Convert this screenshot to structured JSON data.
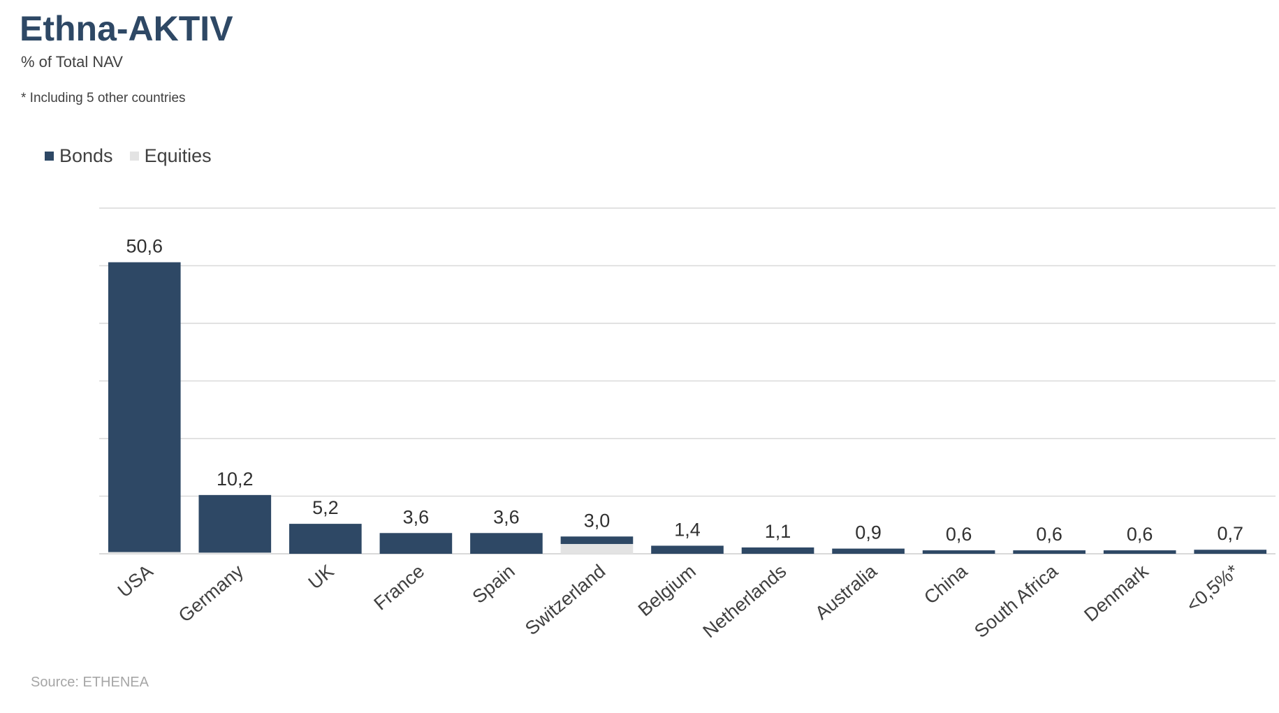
{
  "title": "Ethna-AKTIV",
  "subtitle": "% of Total NAV",
  "note": "* Including 5 other countries",
  "source": "Source: ETHENEA",
  "colors": {
    "bonds": "#2e4865",
    "equities": "#e3e3e3",
    "grid": "#d9d9d9",
    "title": "#2e4865"
  },
  "chart_data": {
    "type": "bar",
    "stacked": true,
    "categories": [
      "USA",
      "Germany",
      "UK",
      "France",
      "Spain",
      "Switzerland",
      "Belgium",
      "Netherlands",
      "Australia",
      "China",
      "South Africa",
      "Denmark",
      "<0,5%*"
    ],
    "series": [
      {
        "name": "Bonds",
        "values": [
          50.3,
          10.0,
          5.2,
          3.6,
          3.6,
          1.3,
          1.4,
          1.1,
          0.9,
          0.6,
          0.6,
          0.6,
          0.7
        ]
      },
      {
        "name": "Equities",
        "values": [
          0.3,
          0.2,
          0.0,
          0.0,
          0.0,
          1.7,
          0.0,
          0.0,
          0.0,
          0.0,
          0.0,
          0.0,
          0.0
        ]
      }
    ],
    "totals": [
      "50,6",
      "10,2",
      "5,2",
      "3,6",
      "3,6",
      "3,0",
      "1,4",
      "1,1",
      "0,9",
      "0,6",
      "0,6",
      "0,6",
      "0,7"
    ],
    "ylim": [
      0,
      60
    ],
    "grid": true,
    "legend_position": "top-left"
  }
}
